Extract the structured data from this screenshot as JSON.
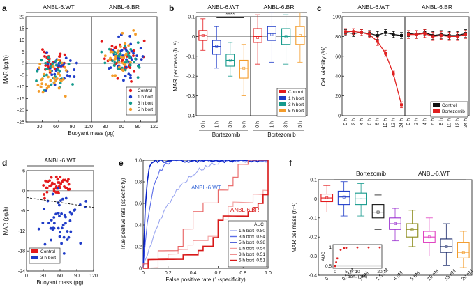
{
  "chart_data": [
    {
      "panel": "a",
      "type": "scatter",
      "titles": [
        "ANBL-6.WT",
        "ANBL-6.BR"
      ],
      "xlabel": "Buoyant mass (pg)",
      "ylabel": "MAR (pg/h)",
      "xlim": [
        0,
        120
      ],
      "ylim": [
        -25,
        20
      ],
      "xticks": [
        "30",
        "60",
        "90",
        "120"
      ],
      "yticks": [
        "20",
        "15",
        "10",
        "5",
        "0",
        "-5",
        "-10",
        "-15",
        "-20",
        "-25"
      ],
      "legend": [
        "Control",
        "1 h bort",
        "3 h bort",
        "5 h bort"
      ],
      "colors": [
        "#e41a1c",
        "#1f3cc8",
        "#159a8c",
        "#f39c2b"
      ],
      "groups": [
        {
          "name": "WT Control",
          "panel": 0,
          "color": 0,
          "n": 30,
          "xmean": 52,
          "xsd": 14,
          "ymean": 1,
          "ysd": 2.2
        },
        {
          "name": "WT 1 h bort",
          "panel": 0,
          "color": 1,
          "n": 30,
          "xmean": 58,
          "xsd": 15,
          "ymean": -2.5,
          "ysd": 3.2
        },
        {
          "name": "WT 3 h bort",
          "panel": 0,
          "color": 2,
          "n": 30,
          "xmean": 48,
          "xsd": 14,
          "ymean": -5,
          "ysd": 4
        },
        {
          "name": "WT 5 h bort",
          "panel": 0,
          "color": 3,
          "n": 35,
          "xmean": 44,
          "xsd": 13,
          "ymean": -7,
          "ysd": 3.5
        },
        {
          "name": "BR Control",
          "panel": 1,
          "color": 0,
          "n": 40,
          "xmean": 56,
          "xsd": 14,
          "ymean": 2.5,
          "ysd": 4
        },
        {
          "name": "BR 1 h bort",
          "panel": 1,
          "color": 1,
          "n": 40,
          "xmean": 60,
          "xsd": 16,
          "ymean": 2,
          "ysd": 4.5
        },
        {
          "name": "BR 3 h bort",
          "panel": 1,
          "color": 2,
          "n": 40,
          "xmean": 58,
          "xsd": 16,
          "ymean": 1.5,
          "ysd": 4.5
        },
        {
          "name": "BR 5 h bort",
          "panel": 1,
          "color": 3,
          "n": 30,
          "xmean": 52,
          "xsd": 12,
          "ymean": 2,
          "ysd": 3.5
        }
      ]
    },
    {
      "panel": "b",
      "type": "box",
      "titles": [
        "ANBL-6.WT",
        "ANBL-6.BR"
      ],
      "ylabel": "MAR per mass (h⁻¹)",
      "xgroup_label": "Bortezomib",
      "ylim": [
        -0.4,
        0.1
      ],
      "yticks": [
        "0.1",
        "0",
        "-0.1",
        "-0.2",
        "-0.3",
        "-0.4"
      ],
      "categories": [
        "0 h",
        "1 h",
        "3 h",
        "5 h"
      ],
      "significance": "****",
      "legend": [
        "Control",
        "1 h bort",
        "3 h bort",
        "5 h bort"
      ],
      "colors": [
        "#e41a1c",
        "#1f3cc8",
        "#159a8c",
        "#f39c2b"
      ],
      "series": [
        {
          "name": "ANBL-6.WT",
          "boxes": [
            {
              "min": -0.07,
              "q1": -0.02,
              "med": 0.005,
              "q3": 0.03,
              "max": 0.09,
              "mean": 0.005
            },
            {
              "min": -0.16,
              "q1": -0.09,
              "med": -0.05,
              "q3": -0.02,
              "max": 0.05,
              "mean": -0.05
            },
            {
              "min": -0.2,
              "q1": -0.15,
              "med": -0.12,
              "q3": -0.09,
              "max": -0.03,
              "mean": -0.12
            },
            {
              "min": -0.3,
              "q1": -0.21,
              "med": -0.16,
              "q3": -0.12,
              "max": -0.04,
              "mean": -0.16
            }
          ]
        },
        {
          "name": "ANBL-6.BR",
          "boxes": [
            {
              "min": -0.14,
              "q1": -0.03,
              "med": 0.0,
              "q3": 0.04,
              "max": 0.11,
              "mean": -0.005
            },
            {
              "min": -0.13,
              "q1": -0.02,
              "med": 0.015,
              "q3": 0.05,
              "max": 0.12,
              "mean": 0.01
            },
            {
              "min": -0.14,
              "q1": -0.04,
              "med": 0.0,
              "q3": 0.04,
              "max": 0.11,
              "mean": 0.0
            },
            {
              "min": -0.13,
              "q1": -0.04,
              "med": 0.0,
              "q3": 0.05,
              "max": 0.12,
              "mean": 0.005
            }
          ]
        }
      ]
    },
    {
      "panel": "c",
      "type": "line",
      "titles": [
        "ANBL-6.WT",
        "ANBL-6.BR"
      ],
      "ylabel": "Cell viability (%)",
      "ylim": [
        0,
        100
      ],
      "yticks": [
        "0",
        "20",
        "40",
        "60",
        "80",
        "100"
      ],
      "categories": [
        "0 h",
        "2 h",
        "4 h",
        "6 h",
        "8 h",
        "10 h",
        "12 h",
        "24 h"
      ],
      "legend": [
        "Control",
        "Bortezomib"
      ],
      "colors": [
        "#111111",
        "#e02020"
      ],
      "series": [
        {
          "name": "WT Control",
          "panel": 0,
          "values": [
            84,
            83,
            84,
            83,
            81,
            84,
            82,
            81
          ],
          "err": [
            3,
            3,
            3,
            3,
            4,
            3,
            3,
            3
          ]
        },
        {
          "name": "WT Bortezomib",
          "panel": 0,
          "values": [
            85,
            85,
            84,
            82,
            75,
            63,
            42,
            11
          ],
          "err": [
            3,
            3,
            3,
            3,
            4,
            3,
            3,
            3
          ]
        },
        {
          "name": "BR Control",
          "panel": 1,
          "values": [
            83,
            82,
            84,
            81,
            82,
            81,
            81,
            83
          ],
          "err": [
            3,
            4,
            3,
            4,
            4,
            4,
            4,
            4
          ]
        },
        {
          "name": "BR Bortezomib",
          "panel": 1,
          "values": [
            82,
            82,
            83,
            80,
            81,
            80,
            80,
            82
          ],
          "err": [
            4,
            4,
            4,
            4,
            4,
            4,
            4,
            4
          ]
        }
      ]
    },
    {
      "panel": "d",
      "type": "scatter",
      "title": "ANBL-6.WT",
      "xlabel": "Buoyant mass (pg)",
      "ylabel": "MAR (pg/h)",
      "xlim": [
        0,
        120
      ],
      "ylim": [
        -24,
        6
      ],
      "xticks": [
        "0",
        "30",
        "60",
        "90",
        "120"
      ],
      "yticks": [
        "6",
        "0",
        "-6",
        "-12",
        "-18",
        "-24"
      ],
      "legend": [
        "Control",
        "3 h bort"
      ],
      "colors": [
        "#e41a1c",
        "#1f3cc8"
      ],
      "fit_line": {
        "x": [
          0,
          120
        ],
        "y": [
          -2,
          -5
        ]
      },
      "groups": [
        {
          "name": "Control",
          "color": 0,
          "n": 45,
          "xmean": 55,
          "xsd": 15,
          "ymean": 1.5,
          "ysd": 1.4
        },
        {
          "name": "3 h bort",
          "color": 1,
          "n": 50,
          "xmean": 65,
          "xsd": 17,
          "ymean": -9,
          "ysd": 4.5
        }
      ]
    },
    {
      "panel": "e",
      "type": "roc",
      "xlabel": "False positive rate (1-specificity)",
      "ylabel": "True positive rate (specificity)",
      "xlim": [
        0,
        1
      ],
      "ylim": [
        0,
        1
      ],
      "ticks": [
        "0",
        "0.2",
        "0.4",
        "0.6",
        "0.8",
        "1.0"
      ],
      "labels": [
        "ANBL-6.WT",
        "ANBL-6.BR"
      ],
      "auc_header": "AUC",
      "series": [
        {
          "name": "1 h bort",
          "group": "WT",
          "color": "#9aa6f0",
          "auc": "0.80"
        },
        {
          "name": "3 h bort",
          "group": "WT",
          "color": "#5a6ce8",
          "auc": "0.94"
        },
        {
          "name": "5 h bort",
          "group": "WT",
          "color": "#0a23c8",
          "auc": "0.98"
        },
        {
          "name": "1 h bort",
          "group": "BR",
          "color": "#f3a0a0",
          "auc": "0.54"
        },
        {
          "name": "3 h bort",
          "group": "BR",
          "color": "#e86060",
          "auc": "0.51"
        },
        {
          "name": "5 h bort",
          "group": "BR",
          "color": "#d81818",
          "auc": "0.51"
        }
      ]
    },
    {
      "panel": "f",
      "type": "box",
      "title": "Bortezomib",
      "title2": "ANBL-6.WT",
      "ylabel": "MAR per mass (h⁻¹)",
      "ylim": [
        -0.4,
        0.1
      ],
      "yticks": [
        "0.1",
        "0",
        "-0.1",
        "-0.2",
        "-0.3",
        "-0.4"
      ],
      "categories": [
        "0",
        "0.5 nM",
        "1 nM",
        "2.5 nM",
        "4 nM",
        "5 nM",
        "10 nM",
        "15 nM",
        "20 nM"
      ],
      "colors": [
        "#e41a1c",
        "#1f3cc8",
        "#159a8c",
        "#111111",
        "#9b30d0",
        "#8a8a18",
        "#e040c0",
        "#1a2a6a",
        "#f39c2b"
      ],
      "boxes": [
        {
          "min": -0.07,
          "q1": -0.015,
          "med": 0.005,
          "q3": 0.025,
          "max": 0.07,
          "mean": 0.005
        },
        {
          "min": -0.09,
          "q1": -0.03,
          "med": 0.01,
          "q3": 0.04,
          "max": 0.09,
          "mean": 0.01
        },
        {
          "min": -0.09,
          "q1": -0.03,
          "med": 0.0,
          "q3": 0.03,
          "max": 0.08,
          "mean": -0.005
        },
        {
          "min": -0.16,
          "q1": -0.1,
          "med": -0.07,
          "q3": -0.03,
          "max": 0.02,
          "mean": -0.07
        },
        {
          "min": -0.22,
          "q1": -0.16,
          "med": -0.13,
          "q3": -0.1,
          "max": -0.05,
          "mean": -0.13
        },
        {
          "min": -0.25,
          "q1": -0.2,
          "med": -0.16,
          "q3": -0.13,
          "max": -0.06,
          "mean": -0.16
        },
        {
          "min": -0.3,
          "q1": -0.23,
          "med": -0.2,
          "q3": -0.17,
          "max": -0.1,
          "mean": -0.2
        },
        {
          "min": -0.35,
          "q1": -0.28,
          "med": -0.25,
          "q3": -0.21,
          "max": -0.13,
          "mean": -0.25
        },
        {
          "min": -0.36,
          "q1": -0.31,
          "med": -0.28,
          "q3": -0.23,
          "max": -0.17,
          "mean": -0.28
        }
      ],
      "inset": {
        "ylabel": "AUC",
        "xlabel": "bort. (nM)",
        "xlim": [
          0,
          20
        ],
        "ylim": [
          0.5,
          1
        ],
        "xticks": [
          "0",
          "5",
          "10",
          "20"
        ],
        "yticks": [
          "1",
          "0.5"
        ],
        "x": [
          0,
          0.5,
          1,
          2.5,
          4,
          5,
          10,
          15,
          20
        ],
        "y": [
          0.5,
          0.6,
          0.7,
          0.92,
          0.96,
          0.97,
          0.98,
          0.98,
          0.98
        ]
      }
    }
  ],
  "panel_labels": [
    "a",
    "b",
    "c",
    "d",
    "e",
    "f"
  ]
}
